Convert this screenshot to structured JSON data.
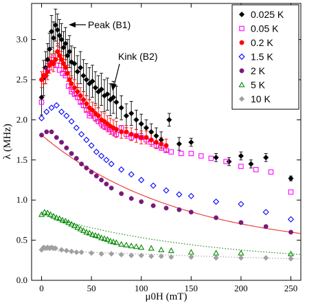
{
  "chart_data": {
    "type": "scatter",
    "xlabel": "μ0H (mT)",
    "ylabel": "λ (MHz)",
    "xlim": [
      -10,
      260
    ],
    "ylim": [
      0,
      3.45
    ],
    "xticks": [
      0,
      50,
      100,
      150,
      200,
      250
    ],
    "yticks": [
      0.0,
      0.5,
      1.0,
      1.5,
      2.0,
      2.5,
      3.0
    ],
    "grid": false,
    "legend_position": "top-right",
    "annotations": [
      {
        "text": "Peak (B1)",
        "x": 20,
        "y": 3.17
      },
      {
        "text": "Kink (B2)",
        "x": 67,
        "y": 2.62
      }
    ],
    "series": [
      {
        "name": "0.025 K",
        "color": "#000000",
        "marker": "diamond-filled",
        "x": [
          0,
          2,
          4,
          6,
          8,
          10,
          12,
          14,
          16,
          18,
          20,
          22,
          24,
          26,
          28,
          30,
          33,
          36,
          39,
          42,
          45,
          48,
          51,
          54,
          57,
          60,
          63,
          66,
          69,
          72,
          75,
          80,
          85,
          90,
          95,
          100,
          105,
          110,
          115,
          120,
          128,
          138,
          150,
          175,
          188,
          200,
          210,
          225,
          250
        ],
        "y": [
          2.28,
          2.52,
          2.65,
          2.75,
          2.88,
          3.1,
          3.02,
          3.18,
          3.12,
          3.05,
          3.0,
          2.9,
          2.95,
          2.8,
          2.85,
          2.72,
          2.7,
          2.6,
          2.65,
          2.55,
          2.5,
          2.45,
          2.48,
          2.4,
          2.35,
          2.38,
          2.3,
          2.32,
          2.25,
          2.28,
          2.22,
          2.15,
          2.05,
          2.08,
          2.0,
          1.95,
          1.9,
          1.85,
          1.8,
          1.75,
          2.0,
          1.7,
          1.72,
          1.53,
          1.48,
          1.55,
          1.45,
          1.53,
          1.27
        ],
        "err": [
          0.22,
          0.22,
          0.2,
          0.2,
          0.2,
          0.2,
          0.2,
          0.2,
          0.2,
          0.2,
          0.2,
          0.2,
          0.2,
          0.2,
          0.2,
          0.2,
          0.2,
          0.2,
          0.2,
          0.2,
          0.2,
          0.2,
          0.2,
          0.2,
          0.2,
          0.2,
          0.2,
          0.2,
          0.2,
          0.2,
          0.2,
          0.15,
          0.15,
          0.15,
          0.12,
          0.12,
          0.1,
          0.1,
          0.1,
          0.1,
          0.08,
          0.08,
          0.05,
          0.05,
          0.05,
          0.05,
          0.05,
          0.05,
          0.03
        ]
      },
      {
        "name": "0.05 K",
        "color": "#ff00ff",
        "marker": "square-open",
        "x": [
          0,
          3,
          6,
          9,
          12,
          15,
          18,
          21,
          24,
          27,
          30,
          33,
          36,
          39,
          42,
          45,
          48,
          51,
          54,
          57,
          60,
          63,
          66,
          69,
          72,
          75,
          80,
          85,
          90,
          95,
          100,
          105,
          110,
          115,
          120,
          125,
          130,
          140,
          150,
          160,
          170,
          185,
          200,
          215,
          230,
          250
        ],
        "y": [
          2.22,
          2.55,
          2.62,
          2.7,
          2.75,
          2.68,
          2.62,
          2.58,
          2.55,
          2.42,
          2.35,
          2.32,
          2.28,
          2.22,
          2.18,
          2.12,
          2.05,
          2.08,
          2.02,
          1.98,
          1.95,
          1.92,
          1.9,
          1.88,
          1.85,
          1.82,
          1.9,
          1.82,
          1.78,
          1.8,
          1.78,
          1.75,
          1.72,
          1.68,
          1.65,
          1.62,
          1.6,
          1.58,
          1.58,
          1.55,
          1.52,
          1.48,
          1.42,
          1.38,
          1.35,
          1.1
        ],
        "err": []
      },
      {
        "name": "0.2 K",
        "color": "#ff0000",
        "marker": "circle-filled",
        "x": [
          0,
          2,
          4,
          6,
          8,
          10,
          12,
          14,
          16,
          18,
          20,
          22,
          24,
          26,
          28,
          30,
          33,
          36,
          39,
          42,
          45,
          48,
          51,
          54,
          57,
          60,
          63,
          66,
          69,
          72,
          75,
          80,
          85,
          90,
          95,
          100,
          105,
          110,
          115,
          120,
          125
        ],
        "y": [
          2.5,
          2.55,
          2.55,
          2.6,
          2.68,
          2.72,
          2.7,
          2.75,
          2.85,
          2.8,
          2.75,
          2.7,
          2.65,
          2.58,
          2.5,
          2.45,
          2.4,
          2.35,
          2.3,
          2.25,
          2.2,
          2.15,
          2.12,
          2.08,
          2.05,
          2.0,
          1.98,
          1.95,
          1.92,
          1.9,
          1.88,
          1.85,
          1.85,
          1.82,
          1.8,
          1.78,
          1.78,
          1.75,
          1.72,
          1.7,
          1.68
        ],
        "err": [
          0.1,
          0.1,
          0.1,
          0.1,
          0.1,
          0.1,
          0.1,
          0.1,
          0.1,
          0.1,
          0.1,
          0.1,
          0.1,
          0.1,
          0.1,
          0.1,
          0.1,
          0.1,
          0.1,
          0.1,
          0.1,
          0.1,
          0.1,
          0.1,
          0.1,
          0.1,
          0.1,
          0.1,
          0.1,
          0.1,
          0.1,
          0.08,
          0.08,
          0.08,
          0.08,
          0.08,
          0.08,
          0.08,
          0.08,
          0.08,
          0.08
        ]
      },
      {
        "name": "1.5 K",
        "color": "#0000ff",
        "marker": "diamond-open",
        "x": [
          0,
          5,
          10,
          15,
          20,
          25,
          30,
          35,
          40,
          45,
          50,
          55,
          60,
          65,
          70,
          80,
          90,
          100,
          112,
          125,
          138,
          150,
          175,
          200,
          225,
          250
        ],
        "y": [
          2.02,
          2.1,
          2.15,
          2.18,
          2.1,
          2.05,
          1.98,
          1.9,
          1.82,
          1.75,
          1.68,
          1.6,
          1.55,
          1.5,
          1.45,
          1.38,
          1.32,
          1.25,
          1.18,
          1.12,
          1.07,
          1.05,
          0.98,
          0.95,
          0.85,
          0.76
        ],
        "err": []
      },
      {
        "name": "2 K",
        "color": "#7a1a7a",
        "marker": "circle-filled",
        "x": [
          0,
          5,
          10,
          15,
          20,
          25,
          30,
          35,
          40,
          45,
          50,
          55,
          60,
          65,
          70,
          80,
          90,
          100,
          112,
          125,
          138,
          150,
          175,
          200,
          225,
          250
        ],
        "y": [
          1.81,
          1.85,
          1.85,
          1.78,
          1.72,
          1.65,
          1.58,
          1.52,
          1.45,
          1.4,
          1.35,
          1.3,
          1.25,
          1.2,
          1.15,
          1.08,
          1.02,
          0.98,
          0.93,
          0.9,
          0.88,
          0.85,
          0.78,
          0.72,
          0.67,
          0.6
        ],
        "err": []
      },
      {
        "name": "5 K",
        "color": "#008800",
        "marker": "triangle-open",
        "x": [
          0,
          3,
          6,
          9,
          12,
          15,
          18,
          21,
          24,
          27,
          30,
          33,
          36,
          39,
          42,
          45,
          48,
          51,
          54,
          57,
          60,
          63,
          66,
          69,
          72,
          75,
          80,
          85,
          90,
          95,
          100,
          110,
          120,
          130,
          150,
          175,
          200,
          250
        ],
        "y": [
          0.82,
          0.85,
          0.84,
          0.82,
          0.8,
          0.78,
          0.77,
          0.75,
          0.74,
          0.72,
          0.7,
          0.68,
          0.66,
          0.64,
          0.62,
          0.6,
          0.59,
          0.57,
          0.56,
          0.55,
          0.53,
          0.52,
          0.51,
          0.49,
          0.48,
          0.47,
          0.45,
          0.44,
          0.43,
          0.42,
          0.41,
          0.4,
          0.38,
          0.37,
          0.35,
          0.34,
          0.34,
          0.33
        ],
        "err": []
      },
      {
        "name": "10 K",
        "color": "#a0a0a0",
        "marker": "diamond-filled",
        "x": [
          0,
          2,
          4,
          6,
          8,
          10,
          12,
          14,
          20,
          25,
          30,
          35,
          40,
          50,
          60,
          70,
          80,
          90,
          100,
          110,
          120,
          130,
          150,
          175,
          200,
          225,
          250
        ],
        "y": [
          0.38,
          0.41,
          0.4,
          0.41,
          0.4,
          0.41,
          0.4,
          0.4,
          0.38,
          0.37,
          0.36,
          0.35,
          0.35,
          0.34,
          0.33,
          0.33,
          0.32,
          0.31,
          0.31,
          0.3,
          0.3,
          0.29,
          0.29,
          0.28,
          0.28,
          0.28,
          0.27
        ],
        "err": []
      }
    ],
    "fits": [
      {
        "series": "2 K",
        "color": "#e8302e",
        "style": "solid",
        "x_range": [
          0,
          260
        ]
      },
      {
        "series": "5 K",
        "color": "#008800",
        "style": "dotted",
        "x_range": [
          0,
          260
        ]
      },
      {
        "series": "10 K",
        "color": "#a0a0a0",
        "style": "dotted",
        "x_range": [
          0,
          260
        ]
      }
    ]
  }
}
